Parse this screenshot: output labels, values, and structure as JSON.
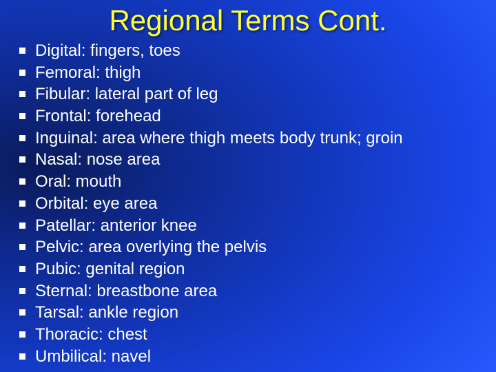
{
  "slide": {
    "title": "Regional Terms Cont.",
    "title_color": "#ffff33",
    "title_fontsize": 42,
    "text_color": "#ffffff",
    "item_fontsize": 24,
    "background_gradient": {
      "type": "radial",
      "stops": [
        "#0a1a5a",
        "#0e2a8f",
        "#1338c0",
        "#1a46e8",
        "#2a5aff",
        "#4a7aff"
      ]
    },
    "items": [
      "Digital: fingers, toes",
      "Femoral: thigh",
      "Fibular: lateral part of leg",
      "Frontal: forehead",
      "Inguinal: area where thigh meets body trunk; groin",
      "Nasal: nose area",
      "Oral: mouth",
      "Orbital: eye area",
      "Patellar: anterior knee",
      "Pelvic: area overlying the pelvis",
      "Pubic: genital region",
      "Sternal: breastbone area",
      "Tarsal: ankle region",
      "Thoracic: chest",
      "Umbilical: navel"
    ]
  }
}
